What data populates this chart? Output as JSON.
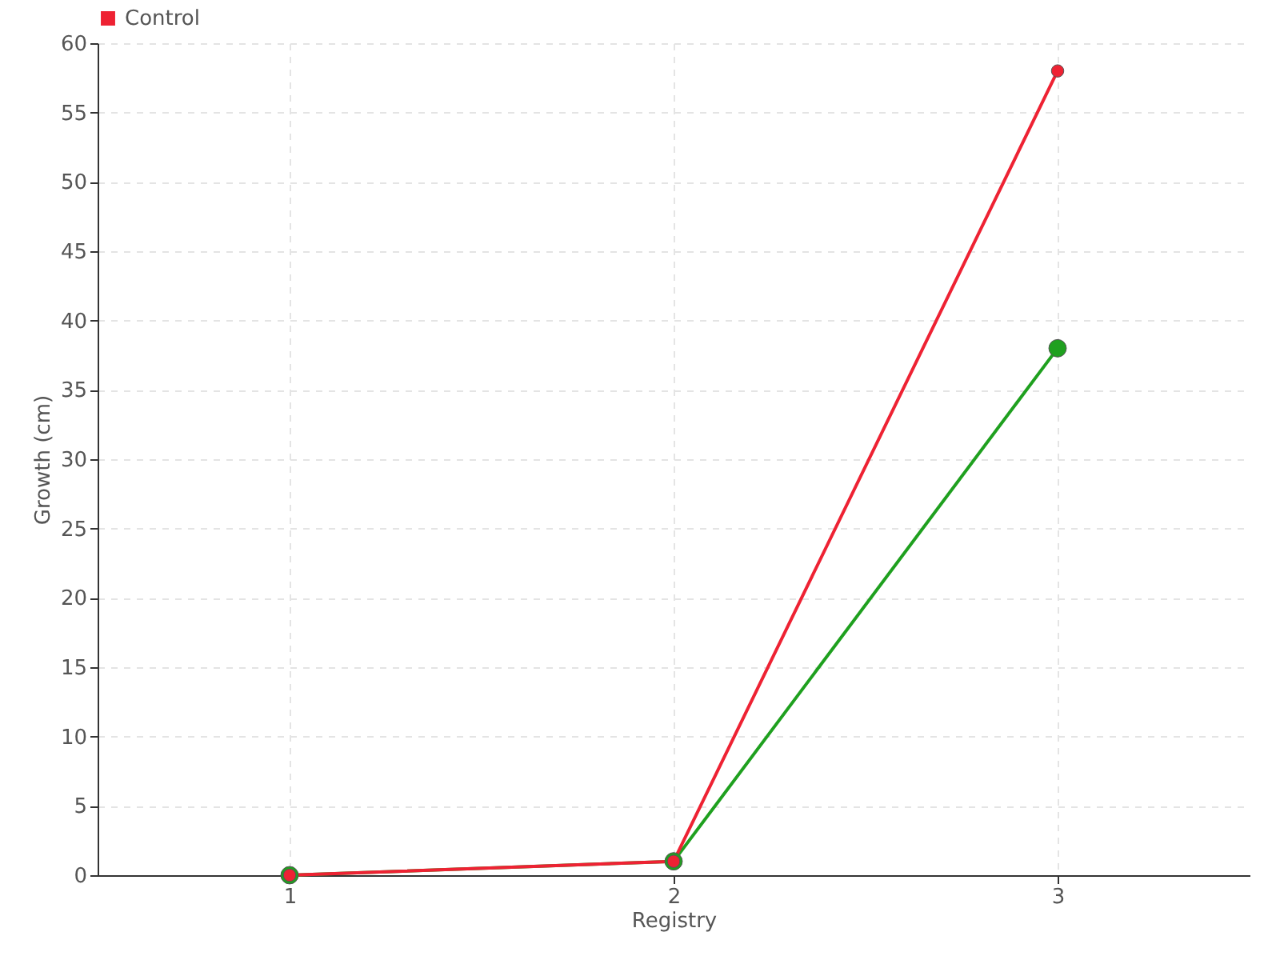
{
  "chart_data": {
    "type": "line",
    "xlabel": "Registry",
    "ylabel": "Growth (cm)",
    "categories": [
      "1",
      "2",
      "3"
    ],
    "series": [
      {
        "color": "#1fa01f",
        "values": [
          0,
          1,
          38
        ]
      },
      {
        "name": "Control",
        "color": "#ee2233",
        "values": [
          0,
          1,
          58
        ]
      }
    ],
    "ylim": [
      0,
      60
    ],
    "yticks": [
      0,
      5,
      10,
      15,
      20,
      25,
      30,
      35,
      40,
      45,
      50,
      55,
      60
    ],
    "grid": true,
    "legend": "top left",
    "marker": "circle",
    "line_style": "solid"
  }
}
